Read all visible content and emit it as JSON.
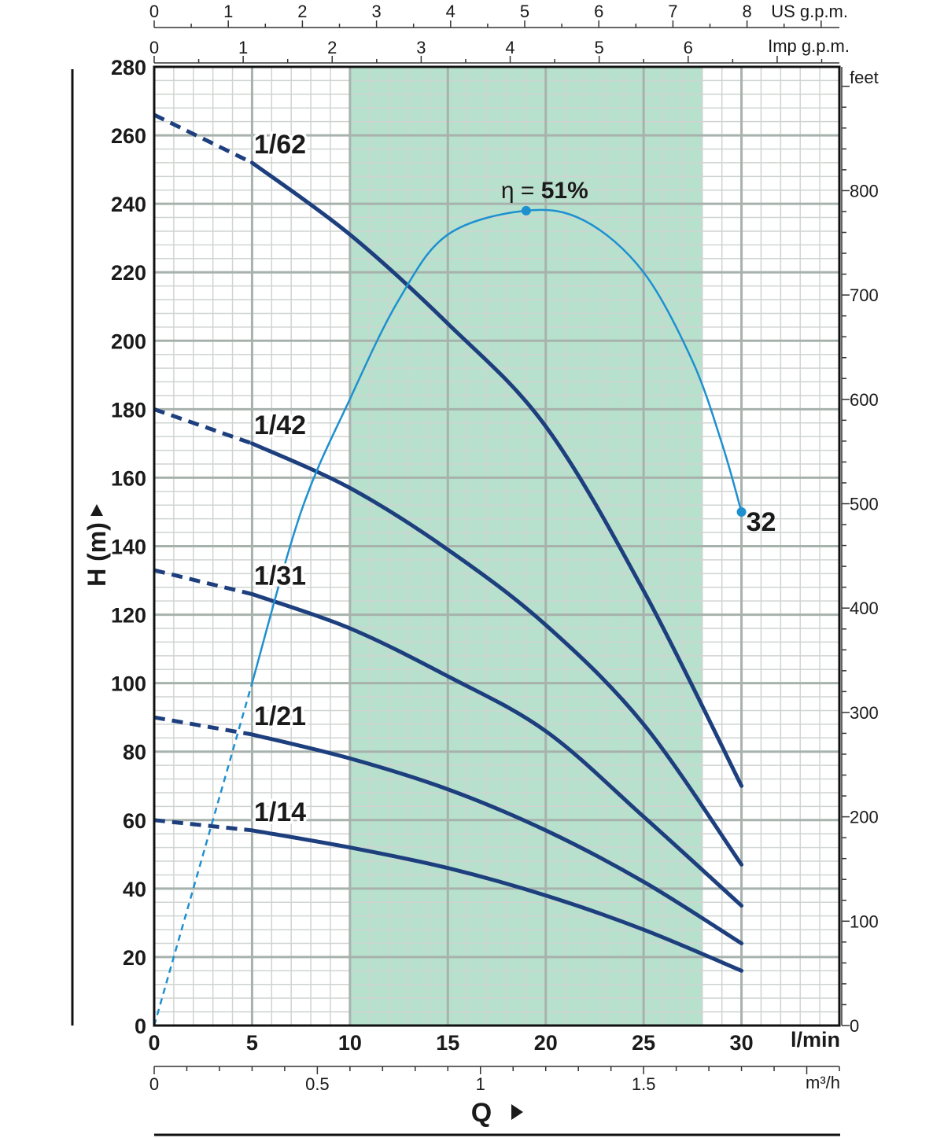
{
  "chart_data": {
    "type": "line",
    "title": "",
    "xlabel": "Q",
    "ylabel": "H (m)",
    "x_unit": "l/min",
    "xlim": [
      0,
      35
    ],
    "ylim": [
      0,
      280
    ],
    "x_ticks": [
      0,
      5,
      10,
      15,
      20,
      25,
      30
    ],
    "x_tick_labels": [
      "0",
      "5",
      "10",
      "15",
      "20",
      "25",
      "30"
    ],
    "y_ticks": [
      0,
      20,
      40,
      60,
      80,
      100,
      120,
      140,
      160,
      180,
      200,
      220,
      240,
      260,
      280
    ],
    "y_tick_labels": [
      "0",
      "20",
      "40",
      "60",
      "80",
      "100",
      "120",
      "140",
      "160",
      "180",
      "200",
      "220",
      "240",
      "260",
      "280"
    ],
    "grid": true,
    "recommended_range": [
      10,
      28
    ],
    "secondary_axes": {
      "us_gpm": {
        "unit": "US g.p.m.",
        "ticks": [
          0,
          1,
          2,
          3,
          4,
          5,
          6,
          7,
          8
        ],
        "labels": [
          "0",
          "1",
          "2",
          "3",
          "4",
          "5",
          "6",
          "7",
          "8"
        ]
      },
      "imp_gpm": {
        "unit": "Imp g.p.m.",
        "ticks": [
          0,
          1,
          2,
          3,
          4,
          5,
          6
        ],
        "labels": [
          "0",
          "1",
          "2",
          "3",
          "4",
          "5",
          "6"
        ]
      },
      "feet": {
        "unit": "feet",
        "ticks": [
          0,
          100,
          200,
          300,
          400,
          500,
          600,
          700,
          800
        ],
        "labels": [
          "0",
          "100",
          "200",
          "300",
          "400",
          "500",
          "600",
          "700",
          "800"
        ]
      },
      "m3h": {
        "unit": "m³/h",
        "ticks": [
          0,
          0.5,
          1,
          1.5
        ],
        "labels": [
          "0",
          "0.5",
          "1",
          "1.5"
        ]
      }
    },
    "series": [
      {
        "name": "1/62",
        "dashed_until": 5,
        "points": [
          [
            0,
            266
          ],
          [
            5,
            252
          ],
          [
            10,
            231
          ],
          [
            15,
            205
          ],
          [
            20,
            175
          ],
          [
            25,
            127
          ],
          [
            30,
            70
          ]
        ]
      },
      {
        "name": "1/42",
        "dashed_until": 5,
        "points": [
          [
            0,
            180
          ],
          [
            5,
            170
          ],
          [
            10,
            157
          ],
          [
            15,
            139
          ],
          [
            20,
            117
          ],
          [
            25,
            88
          ],
          [
            30,
            47
          ]
        ]
      },
      {
        "name": "1/31",
        "dashed_until": 5,
        "points": [
          [
            0,
            133
          ],
          [
            5,
            126
          ],
          [
            10,
            116
          ],
          [
            15,
            102
          ],
          [
            20,
            86
          ],
          [
            25,
            61
          ],
          [
            30,
            35
          ]
        ]
      },
      {
        "name": "1/21",
        "dashed_until": 5,
        "points": [
          [
            0,
            90
          ],
          [
            5,
            85
          ],
          [
            10,
            78
          ],
          [
            15,
            69
          ],
          [
            20,
            57
          ],
          [
            25,
            42
          ],
          [
            30,
            24
          ]
        ]
      },
      {
        "name": "1/14",
        "dashed_until": 5,
        "points": [
          [
            0,
            60
          ],
          [
            5,
            57
          ],
          [
            10,
            52
          ],
          [
            15,
            46
          ],
          [
            20,
            38
          ],
          [
            25,
            28
          ],
          [
            30,
            16
          ]
        ]
      }
    ],
    "efficiency": {
      "label_prefix": "η =",
      "label_value": "51%",
      "peak": [
        19,
        238
      ],
      "end_label": "32",
      "dashed_until": 5,
      "points": [
        [
          0,
          0
        ],
        [
          5,
          100
        ],
        [
          7.5,
          150
        ],
        [
          10,
          183
        ],
        [
          12.5,
          212
        ],
        [
          15,
          231
        ],
        [
          19,
          238
        ],
        [
          22,
          235
        ],
        [
          25,
          220
        ],
        [
          27.5,
          194
        ],
        [
          29,
          170
        ],
        [
          30,
          150
        ]
      ]
    }
  }
}
